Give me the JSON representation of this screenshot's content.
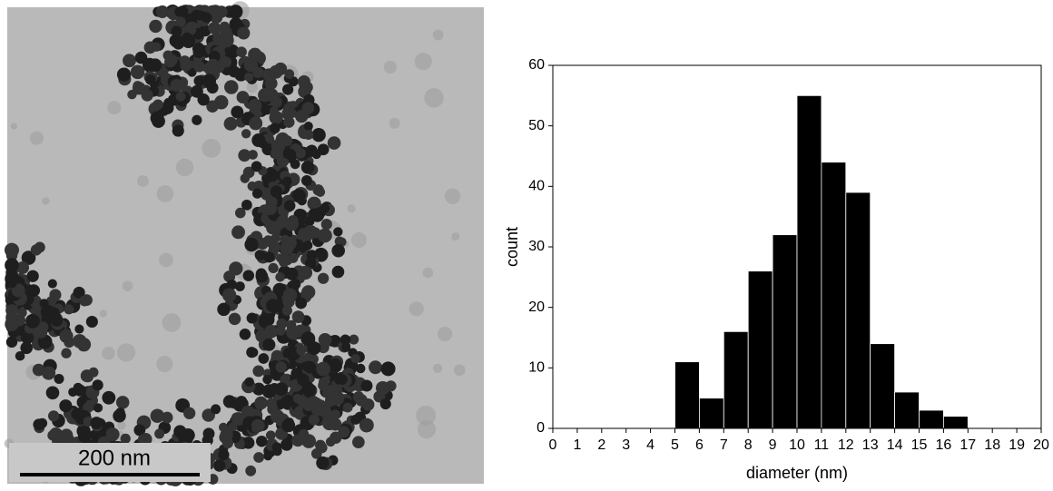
{
  "micrograph": {
    "scale_bar": "200 nm"
  },
  "chart_data": {
    "type": "histogram",
    "x_label": "diameter (nm)",
    "y_label": "count",
    "bins": [
      0,
      1,
      2,
      3,
      4,
      5,
      6,
      7,
      8,
      9,
      10,
      11,
      12,
      13,
      14,
      15,
      16,
      17,
      18,
      19,
      20
    ],
    "values": [
      0,
      0,
      0,
      0,
      0,
      11,
      5,
      16,
      26,
      32,
      55,
      44,
      39,
      14,
      6,
      3,
      2,
      0,
      0,
      0
    ],
    "color": "#000000",
    "edge_color": "#ffffff",
    "xlim": [
      0,
      20
    ],
    "xticks": [
      0,
      1,
      2,
      3,
      4,
      5,
      6,
      7,
      8,
      9,
      10,
      11,
      12,
      13,
      14,
      15,
      16,
      17,
      18,
      19,
      20
    ],
    "ylim": [
      0,
      60
    ],
    "yticks": [
      0,
      10,
      20,
      30,
      40,
      50,
      60
    ]
  }
}
